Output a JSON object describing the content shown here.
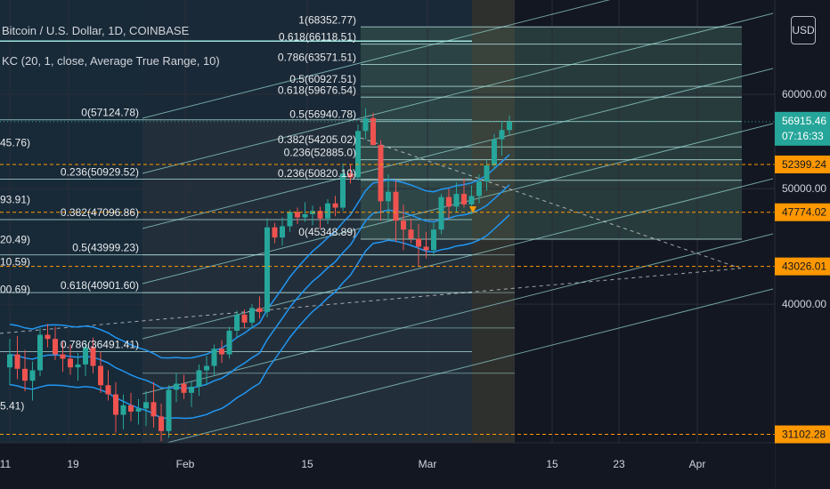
{
  "header": {
    "title": "Bitcoin / U.S. Dollar, 1D, COINBASE",
    "indicator": "KC (20, 1, close, Average True Range, 10)",
    "currency_button": "USD"
  },
  "colors": {
    "background": "#131722",
    "up": "#26a69a",
    "down": "#ef5350",
    "keltner": "#2196f3",
    "fib_line": "#b2dfdb",
    "channel": "#9fe6e0",
    "orange": "#ff9800"
  },
  "chart_data": {
    "type": "candlestick",
    "y_scale": "log",
    "ylim": [
      30600,
      72000
    ],
    "x_axis_ticks": [
      "11",
      "19",
      "Feb",
      "15",
      "Mar",
      "15",
      "23",
      "Apr"
    ],
    "y_axis_ticks": [
      60000.0,
      50000.0,
      40000.0
    ],
    "last_price": {
      "value": "56915.46",
      "countdown": "07:16:33"
    },
    "price_tags": [
      "52399.24",
      "47774.02",
      "43026.01",
      "31102.28"
    ],
    "fib_right": [
      {
        "label": "1(68352.77)",
        "value": 68352.77
      },
      {
        "label": "0.618(66118.51)",
        "value": 66118.51
      },
      {
        "label": "0.786(63571.51)",
        "value": 63571.51
      },
      {
        "label": "0.5(60927.51)",
        "value": 60927.51
      },
      {
        "label": "0.618(59676.54)",
        "value": 59676.54
      },
      {
        "label": "0.5(56940.78)",
        "value": 56940.78
      },
      {
        "label": "0.382(54205.02)",
        "value": 54205.02
      },
      {
        "label": "0.236(52885.0)",
        "value": 52885.0
      },
      {
        "label": "0.236(50820.10)",
        "value": 50820.1
      },
      {
        "label": "0(45348.89)",
        "value": 45348.89
      }
    ],
    "fib_left": [
      {
        "label": "0(57124.78)",
        "value": 57124.78
      },
      {
        "label": "0.236(50929.52)",
        "value": 50929.52
      },
      {
        "label": "0.382(47096.86)",
        "value": 47096.86
      },
      {
        "label": "0.5(43999.23)",
        "value": 43999.23
      },
      {
        "label": "0.618(40901.60)",
        "value": 40901.6
      },
      {
        "label": "0.786(36491.41)",
        "value": 36491.41
      }
    ],
    "fib_partial": [
      {
        "label": "45.76)",
        "value": 53900
      },
      {
        "label": "93.91)",
        "value": 48300
      },
      {
        "label": "20.49)",
        "value": 44700
      },
      {
        "label": "10.59)",
        "value": 42800
      },
      {
        "label": "00.69)",
        "value": 40600
      },
      {
        "label": "5.41)",
        "value": 32400
      }
    ],
    "candles": [
      {
        "o": 35400,
        "h": 37400,
        "l": 34200,
        "c": 36300
      },
      {
        "o": 36300,
        "h": 37600,
        "l": 34600,
        "c": 35300
      },
      {
        "o": 35300,
        "h": 36600,
        "l": 33800,
        "c": 34500
      },
      {
        "o": 34500,
        "h": 35800,
        "l": 33200,
        "c": 35200
      },
      {
        "o": 35200,
        "h": 38200,
        "l": 34800,
        "c": 37700
      },
      {
        "o": 37700,
        "h": 38500,
        "l": 36800,
        "c": 37400
      },
      {
        "o": 37400,
        "h": 38300,
        "l": 35900,
        "c": 36300
      },
      {
        "o": 36300,
        "h": 37200,
        "l": 35100,
        "c": 36000
      },
      {
        "o": 36000,
        "h": 37000,
        "l": 34900,
        "c": 35400
      },
      {
        "o": 35400,
        "h": 36400,
        "l": 34500,
        "c": 35600
      },
      {
        "o": 35600,
        "h": 37300,
        "l": 34800,
        "c": 36800
      },
      {
        "o": 36800,
        "h": 37500,
        "l": 35000,
        "c": 35500
      },
      {
        "o": 35500,
        "h": 36500,
        "l": 33700,
        "c": 34200
      },
      {
        "o": 34200,
        "h": 35200,
        "l": 33200,
        "c": 33600
      },
      {
        "o": 33600,
        "h": 34400,
        "l": 31200,
        "c": 32300
      },
      {
        "o": 32300,
        "h": 33600,
        "l": 31400,
        "c": 32900
      },
      {
        "o": 32900,
        "h": 33700,
        "l": 31900,
        "c": 32500
      },
      {
        "o": 32500,
        "h": 33300,
        "l": 31700,
        "c": 32700
      },
      {
        "o": 32700,
        "h": 33800,
        "l": 31600,
        "c": 33100
      },
      {
        "o": 33100,
        "h": 34400,
        "l": 31500,
        "c": 32200
      },
      {
        "o": 32200,
        "h": 33000,
        "l": 30700,
        "c": 31300
      },
      {
        "o": 31300,
        "h": 34200,
        "l": 30900,
        "c": 33900
      },
      {
        "o": 33900,
        "h": 35000,
        "l": 33100,
        "c": 34300
      },
      {
        "o": 34300,
        "h": 34900,
        "l": 33300,
        "c": 33700
      },
      {
        "o": 33700,
        "h": 34500,
        "l": 32800,
        "c": 34100
      },
      {
        "o": 34100,
        "h": 35600,
        "l": 33500,
        "c": 35200
      },
      {
        "o": 35200,
        "h": 36200,
        "l": 34200,
        "c": 35500
      },
      {
        "o": 35500,
        "h": 37000,
        "l": 34800,
        "c": 36700
      },
      {
        "o": 36700,
        "h": 37300,
        "l": 35700,
        "c": 36300
      },
      {
        "o": 36300,
        "h": 38300,
        "l": 36000,
        "c": 38000
      },
      {
        "o": 38000,
        "h": 39500,
        "l": 37500,
        "c": 39200
      },
      {
        "o": 39200,
        "h": 39600,
        "l": 38200,
        "c": 38600
      },
      {
        "o": 38600,
        "h": 40000,
        "l": 38200,
        "c": 39700
      },
      {
        "o": 39700,
        "h": 40600,
        "l": 38900,
        "c": 39400
      },
      {
        "o": 39400,
        "h": 47200,
        "l": 39000,
        "c": 46400
      },
      {
        "o": 46400,
        "h": 46800,
        "l": 45000,
        "c": 45500
      },
      {
        "o": 45500,
        "h": 47300,
        "l": 44800,
        "c": 46500
      },
      {
        "o": 46500,
        "h": 48000,
        "l": 46000,
        "c": 47800
      },
      {
        "o": 47800,
        "h": 48200,
        "l": 46700,
        "c": 47300
      },
      {
        "o": 47300,
        "h": 48700,
        "l": 46900,
        "c": 47600
      },
      {
        "o": 47600,
        "h": 48400,
        "l": 46600,
        "c": 47900
      },
      {
        "o": 47900,
        "h": 48300,
        "l": 46300,
        "c": 47200
      },
      {
        "o": 47200,
        "h": 49000,
        "l": 46700,
        "c": 48600
      },
      {
        "o": 48600,
        "h": 49300,
        "l": 47400,
        "c": 48200
      },
      {
        "o": 48200,
        "h": 52500,
        "l": 47900,
        "c": 51500
      },
      {
        "o": 51500,
        "h": 52400,
        "l": 50500,
        "c": 51100
      },
      {
        "o": 51100,
        "h": 56600,
        "l": 50800,
        "c": 55900
      },
      {
        "o": 55900,
        "h": 58400,
        "l": 55000,
        "c": 57300
      },
      {
        "o": 57300,
        "h": 57900,
        "l": 54500,
        "c": 54400
      },
      {
        "o": 54400,
        "h": 54900,
        "l": 47000,
        "c": 48800
      },
      {
        "o": 48800,
        "h": 51400,
        "l": 47000,
        "c": 49700
      },
      {
        "o": 49700,
        "h": 50800,
        "l": 45100,
        "c": 47000
      },
      {
        "o": 47000,
        "h": 48500,
        "l": 44400,
        "c": 46200
      },
      {
        "o": 46200,
        "h": 47200,
        "l": 45000,
        "c": 45400
      },
      {
        "o": 45400,
        "h": 46700,
        "l": 43000,
        "c": 44700
      },
      {
        "o": 44700,
        "h": 46000,
        "l": 43700,
        "c": 44400
      },
      {
        "o": 44400,
        "h": 46800,
        "l": 43900,
        "c": 46200
      },
      {
        "o": 46200,
        "h": 49500,
        "l": 45800,
        "c": 49200
      },
      {
        "o": 49200,
        "h": 50000,
        "l": 47200,
        "c": 48300
      },
      {
        "o": 48300,
        "h": 50600,
        "l": 47800,
        "c": 49500
      },
      {
        "o": 49500,
        "h": 51000,
        "l": 48200,
        "c": 48500
      },
      {
        "o": 48500,
        "h": 50300,
        "l": 47600,
        "c": 49300
      },
      {
        "o": 49300,
        "h": 51400,
        "l": 48600,
        "c": 50700
      },
      {
        "o": 50700,
        "h": 52800,
        "l": 49800,
        "c": 52300
      },
      {
        "o": 52300,
        "h": 55600,
        "l": 51900,
        "c": 55000
      },
      {
        "o": 55000,
        "h": 57000,
        "l": 53300,
        "c": 56000
      },
      {
        "o": 56000,
        "h": 57600,
        "l": 55500,
        "c": 56915
      }
    ]
  }
}
